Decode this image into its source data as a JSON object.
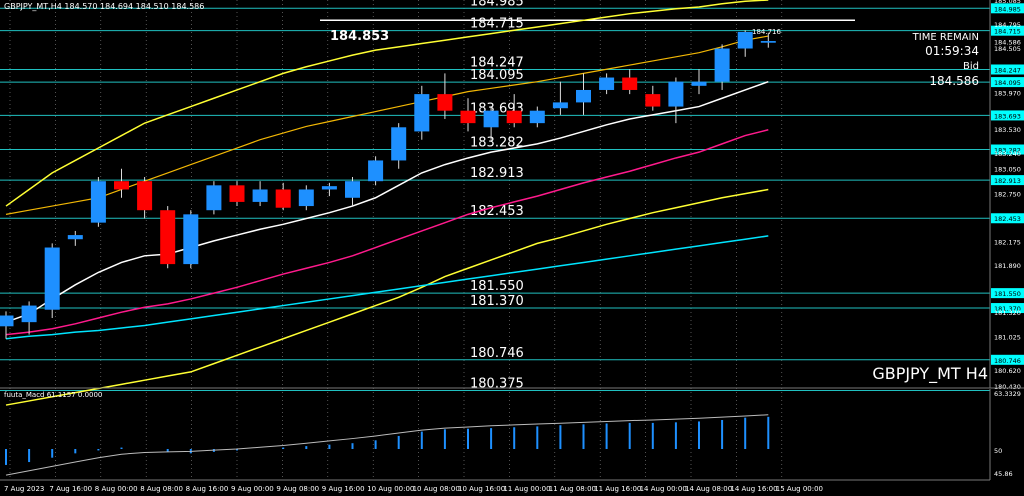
{
  "header": {
    "ohlc_text": "GBPJPY_MT,H4  184.570 184.694 184.510 184.586",
    "time_remain_label": "TIME REMAIN",
    "time_remain_value": "01:59:34",
    "bid_label": "Bid",
    "bid_value": "184.586",
    "current_high_label": "184.853",
    "last_candle_high": "184.716",
    "symbol_caption": "GBPJPY_MT H4"
  },
  "colors": {
    "background": "#000000",
    "bull": "#1e90ff",
    "bear": "#ff0000",
    "level": "#20c0c0",
    "axis_tag": "#00ffff",
    "ma_white": "#ffffff",
    "ma_pink": "#ff1a8c",
    "ma_cyan": "#00e5ff",
    "band_yellow": "#ffff33",
    "band_gold": "#f2b705",
    "grid": "#8a8a8a"
  },
  "chart_data": {
    "type": "candlestick",
    "symbol": "GBPJPY_MT",
    "timeframe": "H4",
    "ylim": [
      180.43,
      185.085
    ],
    "price_axis_ticks": [
      "185.085",
      "184.985",
      "184.715",
      "184.795",
      "184.586",
      "184.505",
      "184.247",
      "184.095",
      "183.970",
      "183.693",
      "183.530",
      "183.282",
      "183.240",
      "183.050",
      "182.913",
      "182.750",
      "182.453",
      "182.175",
      "181.890",
      "181.550",
      "181.370",
      "181.320",
      "181.025",
      "180.746",
      "180.620",
      "180.430"
    ],
    "level_lines": [
      {
        "label": "184.985",
        "value": 184.985
      },
      {
        "label": "184.715",
        "value": 184.715
      },
      {
        "label": "184.247",
        "value": 184.247
      },
      {
        "label": "184.095",
        "value": 184.095
      },
      {
        "label": "183.693",
        "value": 183.693
      },
      {
        "label": "183.282",
        "value": 183.282
      },
      {
        "label": "182.913",
        "value": 182.913
      },
      {
        "label": "182.453",
        "value": 182.453
      },
      {
        "label": "181.550",
        "value": 181.55
      },
      {
        "label": "181.370",
        "value": 181.37
      },
      {
        "label": "180.746",
        "value": 180.746
      },
      {
        "label": "180.375",
        "value": 180.375
      }
    ],
    "x_labels": [
      "7 Aug 2023",
      "7 Aug 16:00",
      "8 Aug 00:00",
      "8 Aug 08:00",
      "8 Aug 16:00",
      "9 Aug 00:00",
      "9 Aug 08:00",
      "9 Aug 16:00",
      "10 Aug 00:00",
      "10 Aug 08:00",
      "10 Aug 16:00",
      "11 Aug 00:00",
      "11 Aug 08:00",
      "11 Aug 16:00",
      "14 Aug 00:00",
      "14 Aug 08:00",
      "14 Aug 16:00",
      "15 Aug 00:00"
    ],
    "candles": [
      {
        "o": 181.15,
        "h": 181.33,
        "l": 181.0,
        "c": 181.28
      },
      {
        "o": 181.2,
        "h": 181.45,
        "l": 181.05,
        "c": 181.4
      },
      {
        "o": 181.35,
        "h": 182.15,
        "l": 181.25,
        "c": 182.1
      },
      {
        "o": 182.2,
        "h": 182.3,
        "l": 182.12,
        "c": 182.25
      },
      {
        "o": 182.4,
        "h": 182.95,
        "l": 182.35,
        "c": 182.9
      },
      {
        "o": 182.9,
        "h": 183.05,
        "l": 182.7,
        "c": 182.8
      },
      {
        "o": 182.9,
        "h": 182.95,
        "l": 182.45,
        "c": 182.55
      },
      {
        "o": 182.55,
        "h": 182.6,
        "l": 181.85,
        "c": 181.9
      },
      {
        "o": 181.9,
        "h": 182.55,
        "l": 181.85,
        "c": 182.5
      },
      {
        "o": 182.55,
        "h": 182.9,
        "l": 182.5,
        "c": 182.85
      },
      {
        "o": 182.85,
        "h": 182.9,
        "l": 182.6,
        "c": 182.65
      },
      {
        "o": 182.65,
        "h": 182.9,
        "l": 182.6,
        "c": 182.8
      },
      {
        "o": 182.8,
        "h": 182.88,
        "l": 182.55,
        "c": 182.58
      },
      {
        "o": 182.6,
        "h": 182.85,
        "l": 182.55,
        "c": 182.8
      },
      {
        "o": 182.8,
        "h": 182.88,
        "l": 182.72,
        "c": 182.84
      },
      {
        "o": 182.7,
        "h": 182.95,
        "l": 182.6,
        "c": 182.9
      },
      {
        "o": 182.9,
        "h": 183.2,
        "l": 182.85,
        "c": 183.15
      },
      {
        "o": 183.15,
        "h": 183.6,
        "l": 183.05,
        "c": 183.55
      },
      {
        "o": 183.5,
        "h": 184.05,
        "l": 183.4,
        "c": 183.95
      },
      {
        "o": 183.95,
        "h": 184.2,
        "l": 183.65,
        "c": 183.75
      },
      {
        "o": 183.75,
        "h": 183.9,
        "l": 183.5,
        "c": 183.6
      },
      {
        "o": 183.55,
        "h": 183.8,
        "l": 183.4,
        "c": 183.75
      },
      {
        "o": 183.75,
        "h": 183.95,
        "l": 183.55,
        "c": 183.6
      },
      {
        "o": 183.6,
        "h": 183.8,
        "l": 183.55,
        "c": 183.75
      },
      {
        "o": 183.78,
        "h": 184.1,
        "l": 183.7,
        "c": 183.85
      },
      {
        "o": 183.85,
        "h": 184.2,
        "l": 183.7,
        "c": 184.0
      },
      {
        "o": 184.0,
        "h": 184.2,
        "l": 183.95,
        "c": 184.15
      },
      {
        "o": 184.15,
        "h": 184.25,
        "l": 183.95,
        "c": 184.0
      },
      {
        "o": 183.95,
        "h": 184.05,
        "l": 183.75,
        "c": 183.8
      },
      {
        "o": 183.8,
        "h": 184.15,
        "l": 183.6,
        "c": 184.1
      },
      {
        "o": 184.05,
        "h": 184.25,
        "l": 183.95,
        "c": 184.1
      },
      {
        "o": 184.1,
        "h": 184.55,
        "l": 184.0,
        "c": 184.5
      },
      {
        "o": 184.5,
        "h": 184.72,
        "l": 184.4,
        "c": 184.7
      },
      {
        "o": 184.57,
        "h": 184.69,
        "l": 184.51,
        "c": 184.59
      }
    ],
    "overlays": {
      "ma_white": [
        181.2,
        181.3,
        181.48,
        181.65,
        181.8,
        181.92,
        182.0,
        182.02,
        182.1,
        182.18,
        182.25,
        182.32,
        182.38,
        182.45,
        182.52,
        182.6,
        182.7,
        182.85,
        183.0,
        183.1,
        183.18,
        183.25,
        183.3,
        183.35,
        183.42,
        183.5,
        183.58,
        183.65,
        183.7,
        183.75,
        183.8,
        183.9,
        184.0,
        184.1
      ],
      "ma_pink": [
        181.05,
        181.08,
        181.12,
        181.18,
        181.25,
        181.32,
        181.38,
        181.42,
        181.48,
        181.55,
        181.62,
        181.7,
        181.78,
        181.85,
        181.92,
        182.0,
        182.1,
        182.2,
        182.3,
        182.4,
        182.5,
        182.58,
        182.65,
        182.72,
        182.8,
        182.88,
        182.95,
        183.02,
        183.1,
        183.18,
        183.25,
        183.35,
        183.45,
        183.52
      ],
      "ma_cyan": [
        181.0,
        181.03,
        181.05,
        181.08,
        181.1,
        181.13,
        181.16,
        181.2,
        181.24,
        181.28,
        181.32,
        181.36,
        181.4,
        181.44,
        181.48,
        181.52,
        181.56,
        181.6,
        181.64,
        181.68,
        181.72,
        181.76,
        181.8,
        181.84,
        181.88,
        181.92,
        181.96,
        182.0,
        182.04,
        182.08,
        182.12,
        182.16,
        182.2,
        182.24
      ],
      "band_upper": [
        182.6,
        182.8,
        183.0,
        183.15,
        183.3,
        183.45,
        183.6,
        183.7,
        183.8,
        183.9,
        184.0,
        184.1,
        184.2,
        184.28,
        184.35,
        184.42,
        184.48,
        184.52,
        184.56,
        184.6,
        184.64,
        184.68,
        184.72,
        184.76,
        184.8,
        184.84,
        184.88,
        184.92,
        184.95,
        184.98,
        185.0,
        185.04,
        185.07,
        185.085
      ],
      "band_mid": [
        182.5,
        182.55,
        182.6,
        182.65,
        182.7,
        182.8,
        182.9,
        183.0,
        183.1,
        183.2,
        183.3,
        183.4,
        183.48,
        183.56,
        183.62,
        183.68,
        183.74,
        183.8,
        183.86,
        183.92,
        183.98,
        184.02,
        184.06,
        184.1,
        184.15,
        184.2,
        184.25,
        184.3,
        184.35,
        184.4,
        184.45,
        184.52,
        184.6,
        184.65
      ],
      "band_lower": [
        180.2,
        180.25,
        180.3,
        180.35,
        180.4,
        180.45,
        180.5,
        180.55,
        180.6,
        180.7,
        180.8,
        180.9,
        181.0,
        181.1,
        181.2,
        181.3,
        181.4,
        181.5,
        181.62,
        181.75,
        181.85,
        181.95,
        182.05,
        182.15,
        182.22,
        182.3,
        182.38,
        182.45,
        182.52,
        182.58,
        182.64,
        182.7,
        182.75,
        182.8
      ]
    },
    "macd": {
      "label": "fuuta_Macd 61.1157 0.0000",
      "ylim": [
        40,
        70
      ],
      "ticks": [
        "63.3329",
        "50",
        "45.86"
      ],
      "histogram": [
        44.5,
        45.5,
        47.0,
        48.5,
        49.5,
        50.5,
        50.0,
        49.0,
        48.5,
        49.0,
        49.5,
        50.0,
        50.5,
        51.0,
        51.5,
        52.0,
        53.0,
        54.5,
        56.0,
        56.8,
        57.0,
        57.2,
        57.5,
        57.8,
        58.2,
        58.5,
        58.8,
        59.0,
        59.0,
        59.2,
        59.5,
        60.0,
        60.8,
        61.1
      ],
      "line": [
        41.0,
        42.5,
        44.0,
        45.5,
        47.0,
        48.2,
        48.8,
        49.0,
        49.2,
        49.6,
        50.0,
        50.6,
        51.2,
        52.0,
        52.8,
        53.6,
        54.5,
        55.5,
        56.5,
        57.2,
        57.6,
        58.0,
        58.3,
        58.6,
        58.9,
        59.2,
        59.5,
        59.8,
        60.0,
        60.3,
        60.6,
        61.0,
        61.4,
        61.8
      ]
    }
  }
}
